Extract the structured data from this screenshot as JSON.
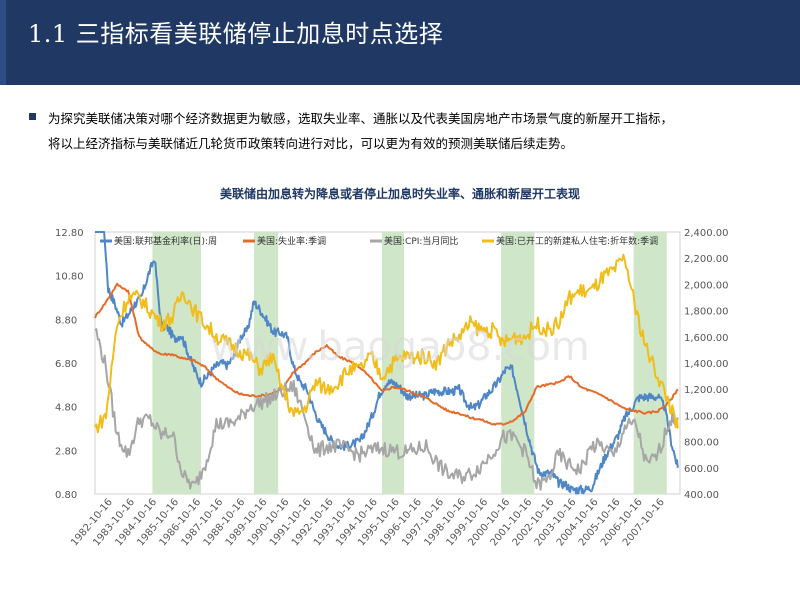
{
  "header": {
    "title": "1.1 三指标看美联储停止加息时点选择"
  },
  "intro": {
    "line1": "为探究美联储决策对哪个经济数据更为敏感，选取失业率、通胀以及代表美国房地产市场景气度的新屋开工指标，",
    "line2": "将以上经济指标与美联储近几轮货币政策转向进行对比，可以更为有效的预测美联储后续走势。"
  },
  "watermark": "www.baogao8.com",
  "colors": {
    "fed": "#4f86c6",
    "unemp": "#e46c2a",
    "cpi": "#a6a6a6",
    "housing": "#f0bd1a",
    "shade": "#cfe6c8",
    "header": "#1f3864"
  },
  "chart_data": {
    "type": "line",
    "title": "美联储由加息转为降息或者停止加息时失业率、通胀和新屋开工表现",
    "x_range": [
      "1982-01",
      "2008-06"
    ],
    "x_tick_labels": [
      "1982-10-16",
      "1983-10-16",
      "1984-10-16",
      "1985-10-16",
      "1986-10-16",
      "1987-10-16",
      "1988-10-16",
      "1989-10-16",
      "1990-10-16",
      "1991-10-16",
      "1992-10-16",
      "1993-10-16",
      "1994-10-16",
      "1995-10-16",
      "1996-10-16",
      "1997-10-16",
      "1998-10-16",
      "1999-10-16",
      "2000-10-16",
      "2001-10-16",
      "2002-10-16",
      "2003-10-16",
      "2004-10-16",
      "2005-10-16",
      "2006-10-16",
      "2007-10-16"
    ],
    "y_left": {
      "min": 0.8,
      "max": 12.8,
      "ticks": [
        "0.80",
        "2.80",
        "4.80",
        "6.80",
        "8.80",
        "10.80",
        "12.80"
      ]
    },
    "y_right": {
      "min": 400,
      "max": 2400,
      "ticks": [
        "400.00",
        "600.00",
        "800.00",
        "1,000.00",
        "1,200.00",
        "1,400.00",
        "1,600.00",
        "1,800.00",
        "2,000.00",
        "2,200.00",
        "2,400.00"
      ]
    },
    "shaded_periods": [
      {
        "start": 1984.6,
        "end": 1986.8
      },
      {
        "start": 1989.2,
        "end": 1990.3
      },
      {
        "start": 1995.0,
        "end": 1996.0
      },
      {
        "start": 2000.4,
        "end": 2001.9
      },
      {
        "start": 2006.4,
        "end": 2007.9
      }
    ],
    "series": [
      {
        "name": "美国:联邦基金利率(日):周",
        "axis": "left",
        "x": [
          1982.0,
          1982.3,
          1982.6,
          1982.9,
          1983.2,
          1983.5,
          1983.8,
          1984.1,
          1984.4,
          1984.7,
          1985.0,
          1985.3,
          1985.6,
          1985.9,
          1986.2,
          1986.5,
          1986.8,
          1987.1,
          1987.4,
          1987.7,
          1988.0,
          1988.3,
          1988.6,
          1988.9,
          1989.2,
          1989.5,
          1989.8,
          1990.1,
          1990.4,
          1990.7,
          1991.0,
          1991.3,
          1991.6,
          1991.9,
          1992.2,
          1992.5,
          1992.8,
          1993.1,
          1993.4,
          1993.7,
          1994.0,
          1994.3,
          1994.6,
          1994.9,
          1995.2,
          1995.5,
          1995.8,
          1996.1,
          1996.4,
          1996.7,
          1997.0,
          1997.3,
          1997.6,
          1997.9,
          1998.2,
          1998.5,
          1998.8,
          1999.1,
          1999.4,
          1999.7,
          2000.0,
          2000.3,
          2000.6,
          2000.9,
          2001.2,
          2001.5,
          2001.8,
          2002.1,
          2002.4,
          2002.7,
          2003.0,
          2003.3,
          2003.6,
          2003.9,
          2004.2,
          2004.5,
          2004.8,
          2005.1,
          2005.4,
          2005.7,
          2006.0,
          2006.3,
          2006.6,
          2006.9,
          2007.2,
          2007.5,
          2007.8,
          2008.1,
          2008.4
        ],
        "y": [
          13.2,
          14.5,
          10.2,
          9.5,
          8.6,
          9.0,
          9.5,
          9.8,
          10.8,
          11.6,
          8.5,
          8.4,
          7.9,
          8.1,
          7.3,
          6.5,
          5.9,
          6.2,
          6.6,
          6.8,
          6.7,
          7.1,
          8.0,
          8.3,
          9.6,
          9.2,
          8.7,
          8.2,
          8.2,
          8.0,
          6.6,
          5.9,
          5.6,
          4.7,
          4.0,
          3.6,
          3.1,
          3.0,
          3.0,
          3.1,
          3.2,
          3.8,
          4.5,
          5.4,
          5.9,
          5.9,
          5.7,
          5.3,
          5.3,
          5.3,
          5.3,
          5.5,
          5.5,
          5.5,
          5.5,
          5.6,
          5.0,
          4.7,
          4.9,
          5.3,
          5.6,
          6.0,
          6.5,
          6.5,
          5.3,
          4.0,
          2.8,
          1.8,
          1.75,
          1.75,
          1.3,
          1.25,
          1.0,
          1.0,
          1.0,
          1.1,
          1.8,
          2.5,
          3.0,
          3.5,
          4.3,
          4.7,
          5.2,
          5.25,
          5.25,
          5.25,
          4.8,
          3.2,
          2.0
        ]
      },
      {
        "name": "美国:失业率:季调",
        "axis": "left",
        "x": [
          1982.0,
          1982.5,
          1983.0,
          1983.5,
          1984.0,
          1984.5,
          1985.0,
          1985.5,
          1986.0,
          1986.5,
          1987.0,
          1987.5,
          1988.0,
          1988.5,
          1989.0,
          1989.5,
          1990.0,
          1990.5,
          1991.0,
          1991.5,
          1992.0,
          1992.5,
          1993.0,
          1993.5,
          1994.0,
          1994.5,
          1995.0,
          1995.5,
          1996.0,
          1996.5,
          1997.0,
          1997.5,
          1998.0,
          1998.5,
          1999.0,
          1999.5,
          2000.0,
          2000.5,
          2001.0,
          2001.5,
          2002.0,
          2002.5,
          2003.0,
          2003.5,
          2004.0,
          2004.5,
          2005.0,
          2005.5,
          2006.0,
          2006.5,
          2007.0,
          2007.5,
          2008.0,
          2008.4
        ],
        "y": [
          8.9,
          9.6,
          10.4,
          10.1,
          8.0,
          7.5,
          7.2,
          7.2,
          7.0,
          6.9,
          6.6,
          6.1,
          5.7,
          5.4,
          5.3,
          5.3,
          5.4,
          5.6,
          6.4,
          6.8,
          7.3,
          7.6,
          7.1,
          6.9,
          6.6,
          6.1,
          5.5,
          5.7,
          5.6,
          5.4,
          5.2,
          4.9,
          4.6,
          4.5,
          4.3,
          4.2,
          4.0,
          4.0,
          4.2,
          4.6,
          5.7,
          5.8,
          5.9,
          6.2,
          5.7,
          5.5,
          5.3,
          5.0,
          4.7,
          4.6,
          4.5,
          4.6,
          5.0,
          5.6
        ]
      },
      {
        "name": "美国:CPI:当月同比",
        "axis": "left",
        "x": [
          1982.0,
          1982.5,
          1983.0,
          1983.5,
          1984.0,
          1984.5,
          1985.0,
          1985.5,
          1986.0,
          1986.5,
          1987.0,
          1987.5,
          1988.0,
          1988.5,
          1989.0,
          1989.5,
          1990.0,
          1990.5,
          1991.0,
          1991.5,
          1992.0,
          1992.5,
          1993.0,
          1993.5,
          1994.0,
          1994.5,
          1995.0,
          1995.5,
          1996.0,
          1996.5,
          1997.0,
          1997.5,
          1998.0,
          1998.5,
          1999.0,
          1999.5,
          2000.0,
          2000.5,
          2001.0,
          2001.5,
          2002.0,
          2002.5,
          2003.0,
          2003.5,
          2004.0,
          2004.5,
          2005.0,
          2005.5,
          2006.0,
          2006.5,
          2007.0,
          2007.5,
          2008.0,
          2008.4
        ],
        "y": [
          8.4,
          6.6,
          3.5,
          2.6,
          4.2,
          4.2,
          3.5,
          3.6,
          1.6,
          1.1,
          2.2,
          4.0,
          4.0,
          4.2,
          4.8,
          5.0,
          5.2,
          5.5,
          5.7,
          4.4,
          2.7,
          3.0,
          3.0,
          2.8,
          2.6,
          2.8,
          2.9,
          2.8,
          2.7,
          2.8,
          3.0,
          2.2,
          1.7,
          1.6,
          1.7,
          2.1,
          2.7,
          3.4,
          3.4,
          2.7,
          1.2,
          1.4,
          2.6,
          2.1,
          1.9,
          3.0,
          3.0,
          2.5,
          3.9,
          4.0,
          2.1,
          2.6,
          4.1,
          4.3
        ]
      },
      {
        "name": "美国:已开工的新建私人住宅:折年数:季调",
        "axis": "right",
        "x": [
          1982.0,
          1982.5,
          1983.0,
          1983.5,
          1984.0,
          1984.5,
          1985.0,
          1985.5,
          1986.0,
          1986.5,
          1987.0,
          1987.5,
          1988.0,
          1988.5,
          1989.0,
          1989.5,
          1990.0,
          1990.5,
          1991.0,
          1991.5,
          1992.0,
          1992.5,
          1993.0,
          1993.5,
          1994.0,
          1994.5,
          1995.0,
          1995.5,
          1996.0,
          1996.5,
          1997.0,
          1997.5,
          1998.0,
          1998.5,
          1999.0,
          1999.5,
          2000.0,
          2000.5,
          2001.0,
          2001.5,
          2002.0,
          2002.5,
          2003.0,
          2003.5,
          2004.0,
          2004.5,
          2005.0,
          2005.5,
          2006.0,
          2006.5,
          2007.0,
          2007.5,
          2008.0,
          2008.4
        ],
        "y": [
          900,
          1000,
          1700,
          1900,
          1900,
          1800,
          1700,
          1750,
          1950,
          1800,
          1700,
          1600,
          1550,
          1500,
          1450,
          1350,
          1450,
          1200,
          1000,
          1050,
          1250,
          1200,
          1250,
          1350,
          1350,
          1450,
          1300,
          1400,
          1450,
          1450,
          1450,
          1400,
          1550,
          1600,
          1700,
          1650,
          1650,
          1550,
          1600,
          1600,
          1700,
          1650,
          1700,
          1900,
          1950,
          1950,
          2050,
          2100,
          2200,
          1800,
          1500,
          1300,
          1100,
          900
        ]
      }
    ]
  }
}
